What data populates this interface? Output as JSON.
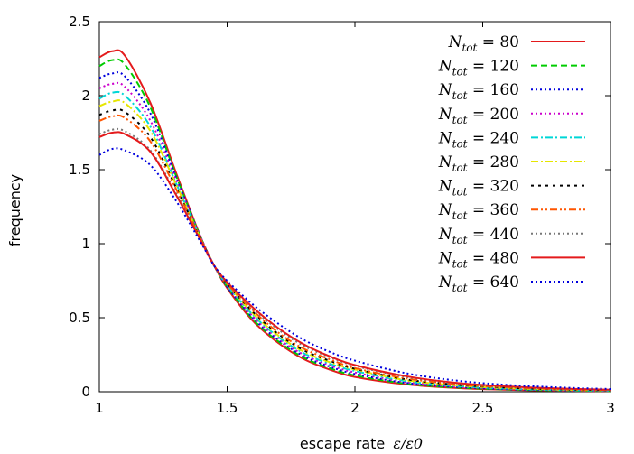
{
  "chart_data": {
    "type": "line",
    "title": "",
    "xlabel": "escape rate",
    "xlabel_math": "ε/ε0",
    "ylabel": "frequency",
    "xlim": [
      1,
      3
    ],
    "ylim": [
      0,
      2.5
    ],
    "xticks": [
      "1",
      "1.5",
      "2",
      "2.5",
      "3"
    ],
    "yticks": [
      "0",
      "0.5",
      "1",
      "1.5",
      "2",
      "2.5"
    ],
    "grid": false,
    "legend_position": "top-right",
    "x": [
      1.0,
      1.05,
      1.1,
      1.2,
      1.3,
      1.4,
      1.45,
      1.5,
      1.6,
      1.7,
      1.8,
      1.9,
      2.0,
      2.2,
      2.4,
      2.6,
      2.8,
      3.0
    ],
    "series": [
      {
        "name": "N_tot = 80",
        "label_N": "N",
        "label_sub": "tot",
        "label_eq": " = 80",
        "color": "#e41a1c",
        "dash": "solid",
        "values": [
          2.26,
          2.3,
          2.27,
          1.95,
          1.48,
          1.03,
          0.85,
          0.7,
          0.48,
          0.33,
          0.22,
          0.15,
          0.1,
          0.05,
          0.025,
          0.013,
          0.007,
          0.004
        ]
      },
      {
        "name": "N_tot = 120",
        "label_N": "N",
        "label_sub": "tot",
        "label_eq": " = 120",
        "color": "#00cc00",
        "dash": "dashed",
        "values": [
          2.2,
          2.24,
          2.21,
          1.92,
          1.46,
          1.03,
          0.85,
          0.71,
          0.49,
          0.34,
          0.23,
          0.16,
          0.11,
          0.055,
          0.028,
          0.015,
          0.008,
          0.005
        ]
      },
      {
        "name": "N_tot = 160",
        "label_N": "N",
        "label_sub": "tot",
        "label_eq": " = 160",
        "color": "#0000dd",
        "dash": "dotted",
        "values": [
          2.12,
          2.15,
          2.13,
          1.88,
          1.45,
          1.03,
          0.85,
          0.71,
          0.5,
          0.35,
          0.24,
          0.17,
          0.12,
          0.06,
          0.032,
          0.017,
          0.01,
          0.006
        ]
      },
      {
        "name": "N_tot = 200",
        "label_N": "N",
        "label_sub": "tot",
        "label_eq": " = 200",
        "color": "#cc00cc",
        "dash": "dotted",
        "values": [
          2.05,
          2.08,
          2.06,
          1.83,
          1.43,
          1.03,
          0.85,
          0.72,
          0.51,
          0.36,
          0.25,
          0.18,
          0.13,
          0.066,
          0.035,
          0.019,
          0.011,
          0.007
        ]
      },
      {
        "name": "N_tot = 240",
        "label_N": "N",
        "label_sub": "tot",
        "label_eq": " = 240",
        "color": "#00d6d6",
        "dash": "dashdot",
        "values": [
          1.98,
          2.02,
          2.0,
          1.79,
          1.41,
          1.02,
          0.85,
          0.72,
          0.52,
          0.37,
          0.26,
          0.19,
          0.14,
          0.072,
          0.039,
          0.021,
          0.012,
          0.008
        ]
      },
      {
        "name": "N_tot = 280",
        "label_N": "N",
        "label_sub": "tot",
        "label_eq": " = 280",
        "color": "#e6e600",
        "dash": "dashdot",
        "values": [
          1.93,
          1.96,
          1.95,
          1.76,
          1.4,
          1.02,
          0.85,
          0.73,
          0.53,
          0.38,
          0.27,
          0.2,
          0.15,
          0.078,
          0.043,
          0.024,
          0.014,
          0.009
        ]
      },
      {
        "name": "N_tot = 320",
        "label_N": "N",
        "label_sub": "tot",
        "label_eq": " = 320",
        "color": "#000000",
        "dash": "shortdash",
        "values": [
          1.87,
          1.9,
          1.89,
          1.72,
          1.38,
          1.02,
          0.85,
          0.73,
          0.54,
          0.39,
          0.28,
          0.21,
          0.155,
          0.084,
          0.047,
          0.027,
          0.016,
          0.01
        ]
      },
      {
        "name": "N_tot = 360",
        "label_N": "N",
        "label_sub": "tot",
        "label_eq": " = 360",
        "color": "#ff5500",
        "dash": "dashdotdot",
        "values": [
          1.83,
          1.86,
          1.85,
          1.69,
          1.37,
          1.02,
          0.85,
          0.73,
          0.55,
          0.4,
          0.29,
          0.22,
          0.16,
          0.09,
          0.05,
          0.029,
          0.017,
          0.011
        ]
      },
      {
        "name": "N_tot = 440",
        "label_N": "N",
        "label_sub": "tot",
        "label_eq": " = 440",
        "color": "#777777",
        "dash": "dotted",
        "values": [
          1.74,
          1.77,
          1.76,
          1.63,
          1.34,
          1.01,
          0.85,
          0.74,
          0.56,
          0.42,
          0.31,
          0.235,
          0.175,
          0.1,
          0.057,
          0.034,
          0.02,
          0.013
        ]
      },
      {
        "name": "N_tot = 480",
        "label_N": "N",
        "label_sub": "tot",
        "label_eq": " = 480",
        "color": "#e41a1c",
        "dash": "solid",
        "values": [
          1.72,
          1.75,
          1.74,
          1.62,
          1.33,
          1.01,
          0.85,
          0.74,
          0.57,
          0.43,
          0.32,
          0.24,
          0.18,
          0.105,
          0.06,
          0.036,
          0.022,
          0.014
        ]
      },
      {
        "name": "N_tot = 640",
        "label_N": "N",
        "label_sub": "tot",
        "label_eq": " = 640",
        "color": "#0000dd",
        "dash": "dotted",
        "values": [
          1.6,
          1.64,
          1.63,
          1.53,
          1.29,
          1.0,
          0.85,
          0.75,
          0.59,
          0.46,
          0.35,
          0.27,
          0.21,
          0.125,
          0.075,
          0.046,
          0.029,
          0.018
        ]
      }
    ]
  }
}
